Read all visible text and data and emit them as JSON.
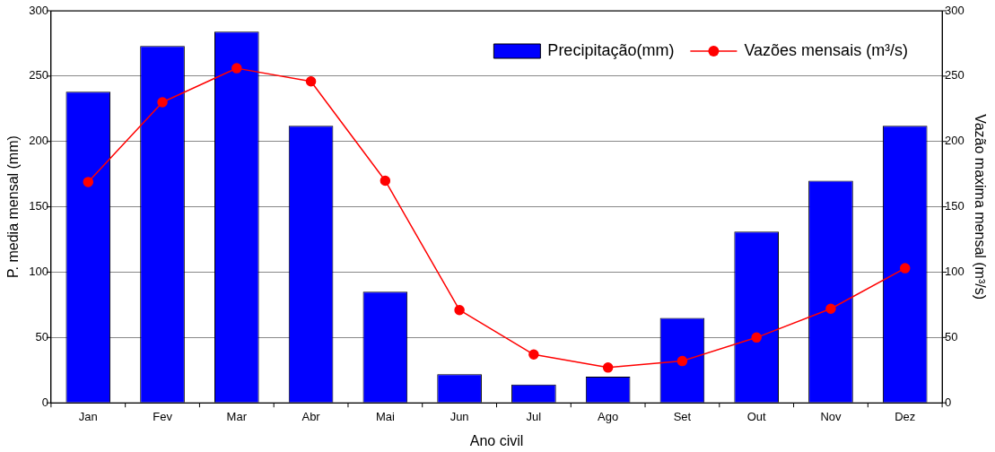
{
  "chart_data": {
    "type": "bar",
    "categories": [
      "Jan",
      "Fev",
      "Mar",
      "Abr",
      "Mai",
      "Jun",
      "Jul",
      "Ago",
      "Set",
      "Out",
      "Nov",
      "Dez"
    ],
    "series": [
      {
        "name": "Precipitação(mm)",
        "color": "#0000ff",
        "values": [
          238,
          273,
          284,
          212,
          85,
          22,
          14,
          20,
          65,
          131,
          170,
          212
        ]
      },
      {
        "name": "Vazões mensais (m³/s)",
        "type": "line",
        "axis": "y2",
        "color": "#ff0000",
        "marker": "circle",
        "values": [
          169,
          230,
          256,
          246,
          170,
          71,
          37,
          27,
          32,
          50,
          72,
          103
        ]
      }
    ],
    "xlabel": "Ano civil",
    "ylabel": "P. media mensal (mm)",
    "y2label": "Vazão maxima mensal (m³/s)",
    "ylim": [
      0,
      300
    ],
    "yticks": [
      0,
      50,
      100,
      150,
      200,
      250,
      300
    ],
    "y2lim": [
      0,
      300
    ],
    "y2ticks": [
      0,
      50,
      100,
      150,
      200,
      250,
      300
    ],
    "grid": "y",
    "legend": "top right"
  }
}
